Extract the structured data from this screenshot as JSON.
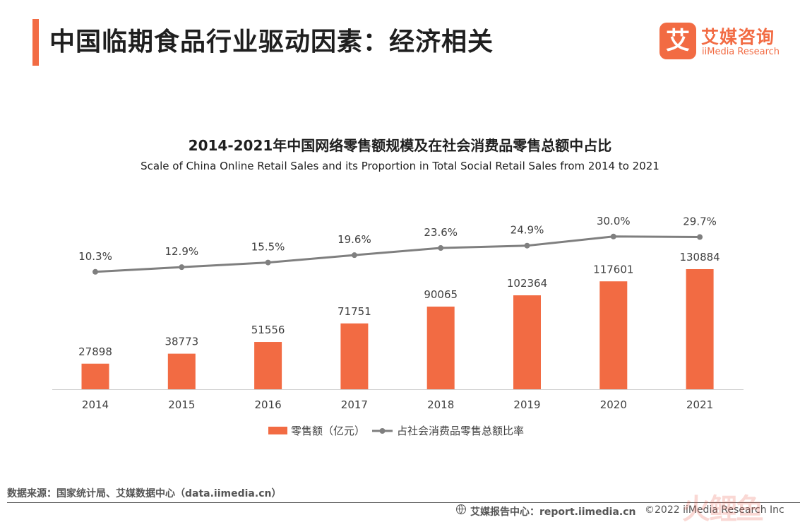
{
  "header": {
    "title": "中国临期食品行业驱动因素：经济相关",
    "brand_mark": "艾",
    "brand_cn": "艾媒咨询",
    "brand_en": "iiMedia Research"
  },
  "chart_data": {
    "type": "bar+line",
    "title": "2014-2021年中国网络零售额规模及在社会消费品零售总额中占比",
    "subtitle": "Scale of China Online Retail Sales and its Proportion in Total Social Retail Sales from 2014 to 2021",
    "categories": [
      "2014",
      "2015",
      "2016",
      "2017",
      "2018",
      "2019",
      "2020",
      "2021"
    ],
    "series": [
      {
        "name": "零售额（亿元）",
        "type": "bar",
        "values": [
          27898,
          38773,
          51556,
          71751,
          90065,
          102364,
          117601,
          130884
        ],
        "labels": [
          "27898",
          "38773",
          "51556",
          "71751",
          "90065",
          "102364",
          "117601",
          "130884"
        ]
      },
      {
        "name": "占社会消费品零售总额比率",
        "type": "line",
        "values": [
          10.3,
          12.9,
          15.5,
          19.6,
          23.6,
          24.9,
          30.0,
          29.7
        ],
        "labels": [
          "10.3%",
          "12.9%",
          "15.5%",
          "19.6%",
          "23.6%",
          "24.9%",
          "30.0%",
          "29.7%"
        ]
      }
    ],
    "legend_position": "bottom",
    "grid": false,
    "colors": {
      "bar": "#f26b43",
      "line": "#7f7f7f"
    }
  },
  "footer": {
    "source": "数据来源：国家统计局、艾媒数据中心（data.iimedia.cn）",
    "report": "艾媒报告中心：report.iimedia.cn",
    "copyright": "©2022  iiMedia Research  Inc",
    "watermark": "火鲤鱼"
  }
}
